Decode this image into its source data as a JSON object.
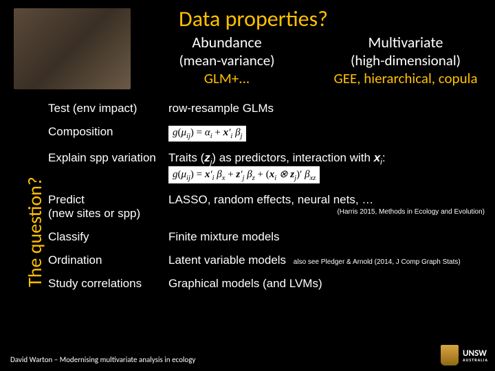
{
  "title": "Data properties?",
  "sidebar_label": "The question?",
  "header": {
    "left": {
      "top": "Abundance",
      "mid": "(mean-variance)",
      "bot": "GLM+..."
    },
    "right": {
      "top": "Multivariate",
      "mid": "(high-dimensional)",
      "bot": "GEE, hierarchical, copula"
    }
  },
  "rows": [
    {
      "q": "Test (env impact)",
      "a": "row-resample GLMs"
    },
    {
      "q": "Composition",
      "a": ""
    },
    {
      "q": "Explain spp variation",
      "a_prefix": "Traits (",
      "a_mid": ") as predictors, interaction with ",
      "a_suffix": ":"
    },
    {
      "q": "Predict\n(new sites or spp)",
      "a": "LASSO, random effects, neural nets, …",
      "cite": "(Harris 2015, Methods in Ecology and Evolution)"
    },
    {
      "q": "Classify",
      "a": "Finite mixture models"
    },
    {
      "q": "Ordination",
      "a": "Latent variable models",
      "cite_inline": "also see Pledger & Arnold (2014, J Comp Graph Stats)"
    },
    {
      "q": "Study correlations",
      "a": "Graphical models (and LVMs)"
    }
  ],
  "footer": "David Warton – Modernising multivariate analysis in ecology",
  "logo": {
    "big": "UNSW",
    "sub": "AUSTRALIA"
  }
}
